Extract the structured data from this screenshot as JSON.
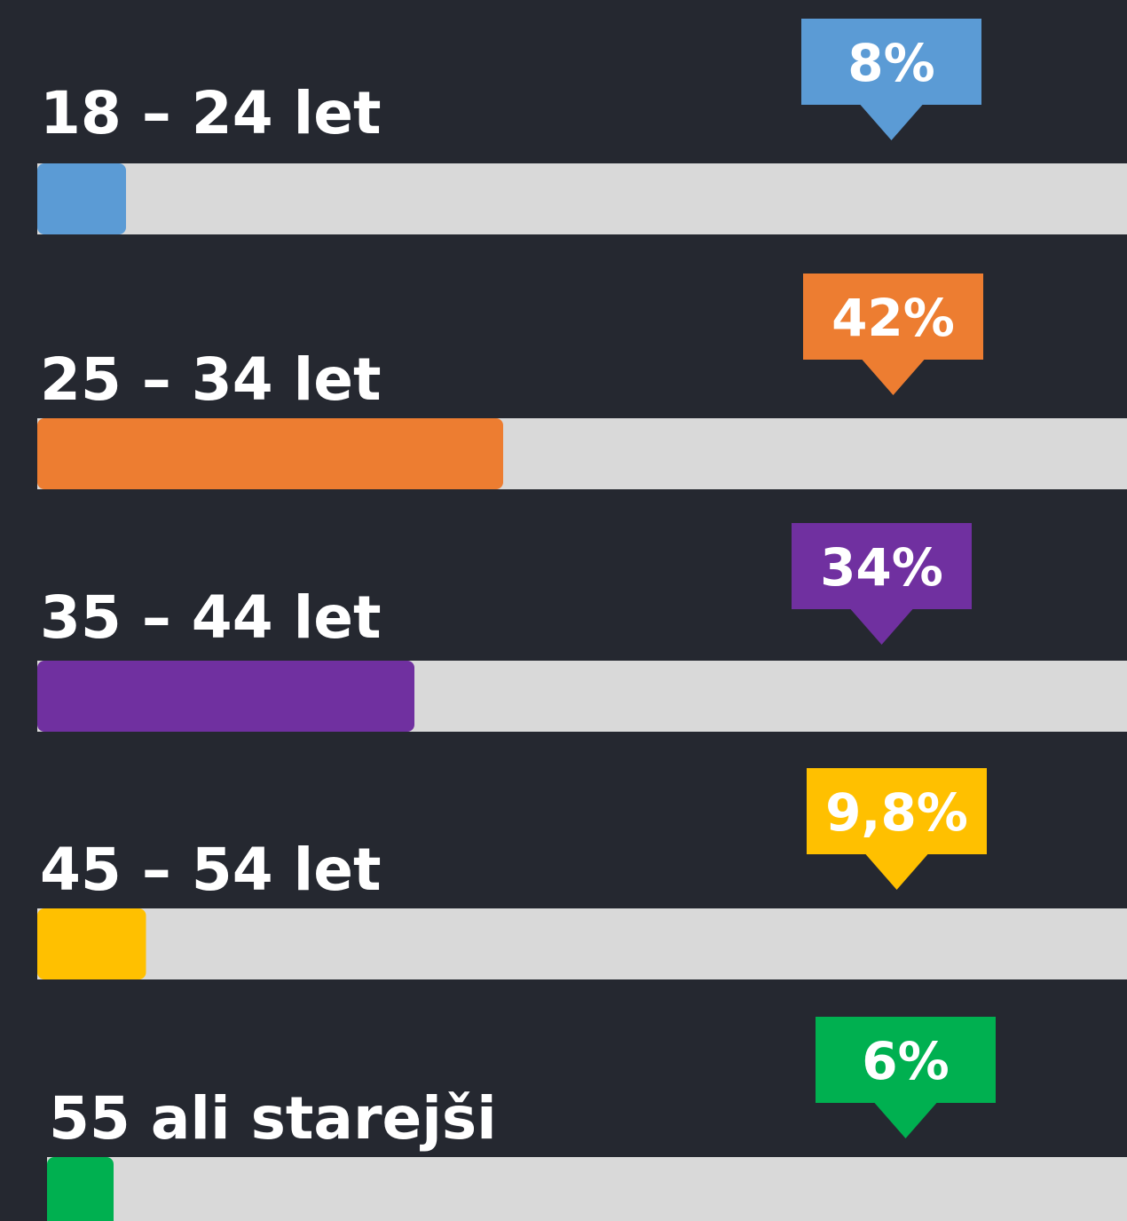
{
  "chart_data": {
    "type": "bar",
    "orientation": "horizontal",
    "categories": [
      "18 – 24 let",
      "25 – 34 let",
      "35 – 44 let",
      "45 – 54 let",
      "55 ali starejši"
    ],
    "values": [
      8,
      42,
      34,
      9.8,
      6
    ],
    "value_labels": [
      "8%",
      "42%",
      "34%",
      "9,8%",
      "6%"
    ],
    "colors": [
      "#5b9bd5",
      "#ed7d31",
      "#7030a0",
      "#ffc000",
      "#00b050"
    ],
    "xlim": [
      0,
      100
    ]
  }
}
